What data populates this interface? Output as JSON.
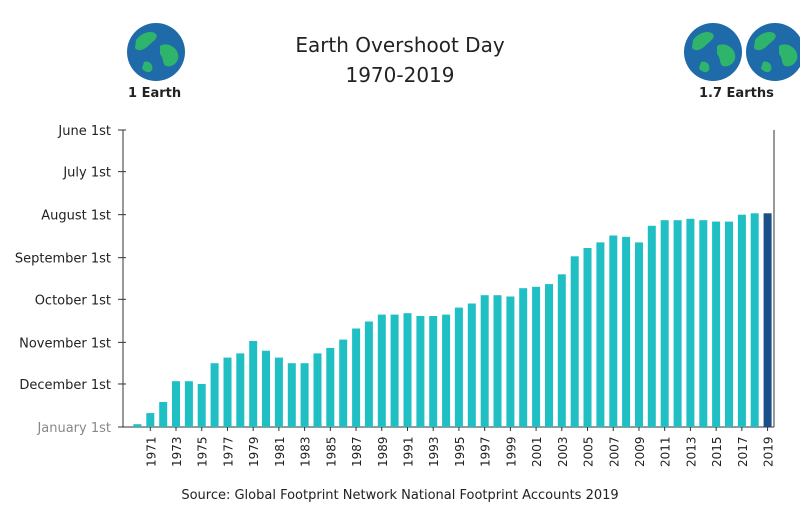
{
  "header": {
    "title_line1": "Earth Overshoot Day",
    "title_line2": "1970-2019",
    "left_globe_label": "1 Earth",
    "right_globe_label": "1.7 Earths",
    "left_globe_icon": "earth-globe-icon",
    "right_globe_icon": "earth-globes-icon"
  },
  "source": "Source: Global Footprint Network National Footprint Accounts 2019",
  "colors": {
    "bar": "#1fbfc4",
    "highlight_bar": "#1a4f8a",
    "ocean": "#1f6aa8",
    "land": "#2fb56b"
  },
  "chart_data": {
    "type": "bar",
    "title": "Earth Overshoot Day 1970-2019",
    "xlabel": "",
    "ylabel": "",
    "y_ticks": [
      "June 1st",
      "July 1st",
      "August 1st",
      "September 1st",
      "October 1st",
      "November 1st",
      "December 1st",
      "January 1st"
    ],
    "y_unit": "day of year (Jan 1st = 1)",
    "y_tick_values": [
      152,
      182,
      213,
      244,
      274,
      305,
      335,
      366
    ],
    "y_axis_inverted": true,
    "ylim": [
      366,
      152
    ],
    "x_ticks": [
      "1971",
      "1973",
      "1975",
      "1977",
      "1979",
      "1981",
      "1983",
      "1985",
      "1987",
      "1989",
      "1991",
      "1993",
      "1995",
      "1997",
      "1999",
      "2001",
      "2003",
      "2005",
      "2007",
      "2009",
      "2011",
      "2013",
      "2015",
      "2017",
      "2019"
    ],
    "categories": [
      "1970",
      "1971",
      "1972",
      "1973",
      "1974",
      "1975",
      "1976",
      "1977",
      "1978",
      "1979",
      "1980",
      "1981",
      "1982",
      "1983",
      "1984",
      "1985",
      "1986",
      "1987",
      "1988",
      "1989",
      "1990",
      "1991",
      "1992",
      "1993",
      "1994",
      "1995",
      "1996",
      "1997",
      "1998",
      "1999",
      "2000",
      "2001",
      "2002",
      "2003",
      "2004",
      "2005",
      "2006",
      "2007",
      "2008",
      "2009",
      "2010",
      "2011",
      "2012",
      "2013",
      "2014",
      "2015",
      "2016",
      "2017",
      "2018",
      "2019"
    ],
    "values": [
      364,
      356,
      348,
      333,
      333,
      335,
      320,
      316,
      313,
      304,
      311,
      316,
      320,
      320,
      313,
      309,
      303,
      295,
      290,
      285,
      285,
      284,
      286,
      286,
      285,
      280,
      277,
      271,
      271,
      272,
      266,
      265,
      263,
      256,
      243,
      237,
      233,
      228,
      229,
      233,
      221,
      217,
      217,
      216,
      217,
      218,
      218,
      213,
      212,
      212
    ],
    "highlight": "2019",
    "grid": false
  }
}
